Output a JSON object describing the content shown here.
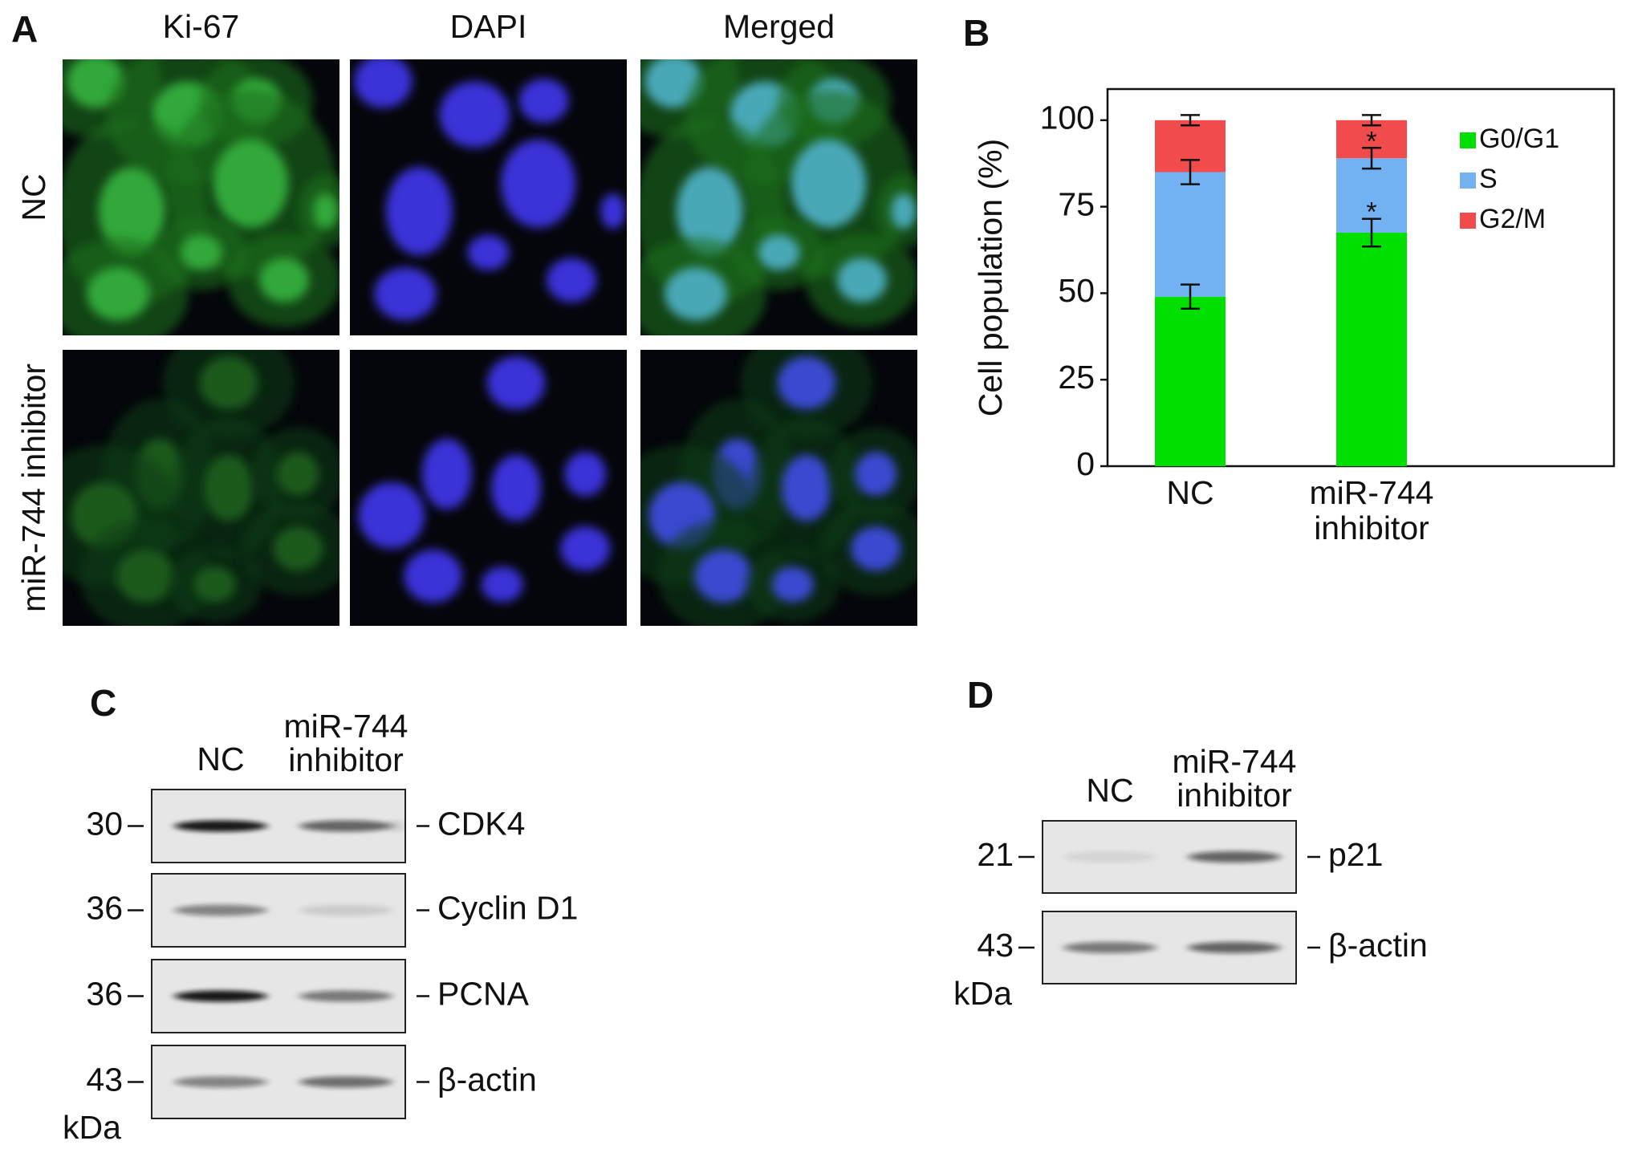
{
  "panel_a": {
    "label": "A",
    "columns": [
      "Ki-67",
      "DAPI",
      "Merged"
    ],
    "rows": [
      "NC",
      "miR-744 inhibitor"
    ]
  },
  "chart_data": {
    "type": "bar",
    "stacked": true,
    "panel_label": "B",
    "categories": [
      "NC",
      "miR-744 inhibitor"
    ],
    "ylabel": "Cell population (%)",
    "ylim": [
      0,
      109
    ],
    "yticks": [
      0,
      25,
      50,
      75,
      100
    ],
    "legend": "upper right",
    "series": [
      {
        "name": "G0/G1",
        "color": "#00e000",
        "values": [
          49,
          67.5
        ],
        "errors": [
          3.5,
          4
        ],
        "markers": [
          null,
          "*"
        ]
      },
      {
        "name": "S",
        "color": "#72b2f2",
        "values": [
          36,
          21.5
        ],
        "errors": [
          3.5,
          3
        ],
        "markers": [
          null,
          "*"
        ]
      },
      {
        "name": "G2/M",
        "color": "#f24b4b",
        "values": [
          15,
          11
        ],
        "errors": [
          1.5,
          1.5
        ],
        "markers": [
          null,
          null
        ]
      }
    ]
  },
  "panel_c": {
    "label": "C",
    "lanes": [
      "NC",
      "miR-744 inhibitor"
    ],
    "unit": "kDa",
    "blots": [
      {
        "size": 30,
        "name": "CDK4"
      },
      {
        "size": 36,
        "name": "Cyclin D1"
      },
      {
        "size": 36,
        "name": "PCNA"
      },
      {
        "size": 43,
        "name": "β-actin"
      }
    ]
  },
  "panel_d": {
    "label": "D",
    "lanes": [
      "NC",
      "miR-744 inhibitor"
    ],
    "unit": "kDa",
    "blots": [
      {
        "size": 21,
        "name": "p21"
      },
      {
        "size": 43,
        "name": "β-actin"
      }
    ]
  }
}
